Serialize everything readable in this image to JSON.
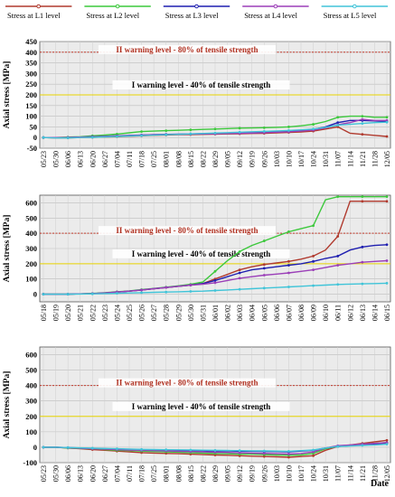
{
  "legend": {
    "position": "top",
    "items": [
      {
        "label": "Stress at L1 level",
        "color": "#b03a2e"
      },
      {
        "label": "Stress at L2 level",
        "color": "#3cc83c"
      },
      {
        "label": "Stress at L3 level",
        "color": "#1f1fb0"
      },
      {
        "label": "Stress at L4 level",
        "color": "#9b3fb8"
      },
      {
        "label": "Stress at L5 level",
        "color": "#40c4d8"
      }
    ]
  },
  "axis_x_label": "Date",
  "chart_data": [
    {
      "type": "line",
      "ylabel": "Axial stress [MPa]",
      "ylim": [
        -50,
        450
      ],
      "yticks": [
        -50,
        0,
        50,
        100,
        150,
        200,
        250,
        300,
        350,
        400,
        450
      ],
      "grid": true,
      "categories": [
        "05/23",
        "05/30",
        "06/06",
        "06/13",
        "06/20",
        "06/27",
        "07/04",
        "07/11",
        "07/18",
        "07/25",
        "08/01",
        "08/08",
        "08/15",
        "08/22",
        "08/29",
        "09/05",
        "09/12",
        "09/19",
        "09/26",
        "10/03",
        "10/10",
        "10/17",
        "10/24",
        "10/31",
        "11/07",
        "11/14",
        "11/21",
        "11/28",
        "12/05"
      ],
      "annotations": [
        {
          "text": "II warning level - 80% of tensile strength",
          "y": 400,
          "color": "#c0392b"
        },
        {
          "text": "I warning level - 40% of tensile strength",
          "y": 200,
          "color": "#e8d400"
        }
      ],
      "series": [
        {
          "name": "Stress at L1 level",
          "values": [
            0,
            -2,
            -2,
            0,
            1,
            2,
            4,
            6,
            8,
            10,
            12,
            13,
            14,
            15,
            16,
            17,
            18,
            19,
            20,
            22,
            24,
            26,
            30,
            40,
            50,
            20,
            15,
            10,
            5
          ]
        },
        {
          "name": "Stress at L2 level",
          "values": [
            0,
            0,
            2,
            4,
            8,
            12,
            16,
            22,
            28,
            30,
            32,
            34,
            36,
            38,
            40,
            42,
            44,
            45,
            46,
            48,
            50,
            55,
            62,
            75,
            95,
            100,
            100,
            95,
            95
          ]
        },
        {
          "name": "Stress at L3 level",
          "values": [
            0,
            0,
            0,
            2,
            4,
            6,
            8,
            10,
            12,
            14,
            15,
            16,
            17,
            18,
            19,
            20,
            21,
            22,
            24,
            26,
            28,
            32,
            38,
            50,
            70,
            80,
            80,
            78,
            75
          ]
        },
        {
          "name": "Stress at L4 level",
          "values": [
            0,
            0,
            0,
            2,
            3,
            5,
            7,
            9,
            11,
            13,
            14,
            15,
            16,
            17,
            18,
            19,
            20,
            21,
            23,
            25,
            27,
            30,
            35,
            45,
            60,
            70,
            85,
            80,
            80
          ]
        },
        {
          "name": "Stress at L5 level",
          "values": [
            0,
            -2,
            -2,
            0,
            1,
            3,
            5,
            7,
            9,
            11,
            13,
            15,
            17,
            19,
            21,
            23,
            25,
            27,
            29,
            31,
            33,
            36,
            40,
            48,
            58,
            62,
            66,
            70,
            72
          ]
        }
      ]
    },
    {
      "type": "line",
      "ylabel": "Axial stress [MPa]",
      "ylim": [
        -50,
        650
      ],
      "yticks": [
        0,
        100,
        200,
        300,
        400,
        500,
        600
      ],
      "grid": true,
      "categories": [
        "05/18",
        "05/19",
        "05/20",
        "05/21",
        "05/22",
        "05/23",
        "05/24",
        "05/25",
        "05/26",
        "05/27",
        "05/28",
        "05/29",
        "05/30",
        "05/31",
        "06/01",
        "06/02",
        "06/03",
        "06/04",
        "06/05",
        "06/06",
        "06/07",
        "06/08",
        "06/09",
        "06/10",
        "06/11",
        "06/12",
        "06/13",
        "06/14",
        "06/15"
      ],
      "annotations": [
        {
          "text": "II warning level - 80% of tensile strength",
          "y": 400,
          "color": "#c0392b"
        },
        {
          "text": "I warning level - 40% of tensile strength",
          "y": 200,
          "color": "#e8d400"
        }
      ],
      "series": [
        {
          "name": "Stress at L1 level",
          "values": [
            0,
            0,
            0,
            2,
            4,
            8,
            14,
            20,
            28,
            36,
            44,
            52,
            60,
            70,
            100,
            130,
            160,
            180,
            195,
            205,
            215,
            230,
            250,
            290,
            380,
            610,
            610,
            610,
            610
          ]
        },
        {
          "name": "Stress at L2 level",
          "values": [
            0,
            0,
            0,
            2,
            5,
            10,
            16,
            22,
            30,
            38,
            46,
            55,
            65,
            80,
            150,
            220,
            280,
            320,
            350,
            380,
            410,
            430,
            450,
            620,
            640,
            640,
            640,
            640,
            640
          ]
        },
        {
          "name": "Stress at L3 level",
          "values": [
            0,
            0,
            0,
            2,
            4,
            8,
            14,
            20,
            28,
            36,
            44,
            52,
            60,
            70,
            90,
            115,
            140,
            160,
            170,
            180,
            190,
            200,
            215,
            235,
            250,
            290,
            310,
            320,
            325
          ]
        },
        {
          "name": "Stress at L4 level",
          "values": [
            0,
            0,
            0,
            2,
            4,
            8,
            14,
            20,
            28,
            36,
            44,
            52,
            60,
            65,
            75,
            90,
            105,
            115,
            125,
            132,
            140,
            150,
            160,
            175,
            190,
            200,
            210,
            215,
            220
          ]
        },
        {
          "name": "Stress at L5 level",
          "values": [
            0,
            0,
            0,
            1,
            2,
            4,
            6,
            8,
            10,
            12,
            14,
            16,
            18,
            20,
            24,
            28,
            32,
            36,
            40,
            44,
            48,
            52,
            56,
            60,
            64,
            66,
            68,
            70,
            72
          ]
        }
      ]
    },
    {
      "type": "line",
      "ylabel": "Axial stress [MPa]",
      "ylim": [
        -100,
        650
      ],
      "yticks": [
        -100,
        0,
        100,
        200,
        300,
        400,
        500,
        600
      ],
      "grid": true,
      "categories": [
        "05/23",
        "05/30",
        "06/06",
        "06/13",
        "06/20",
        "06/27",
        "07/04",
        "07/11",
        "07/18",
        "07/25",
        "08/01",
        "08/08",
        "08/15",
        "08/22",
        "08/29",
        "09/05",
        "09/12",
        "09/19",
        "09/26",
        "10/03",
        "10/10",
        "10/17",
        "10/24",
        "10/31",
        "11/07",
        "11/14",
        "11/21",
        "11/28",
        "12/05"
      ],
      "annotations": [
        {
          "text": "II warning level - 80% of tensile strength",
          "y": 400,
          "color": "#c0392b"
        },
        {
          "text": "I warning level - 40% of tensile strength",
          "y": 200,
          "color": "#e8d400"
        }
      ],
      "series": [
        {
          "name": "Stress at L1 level",
          "values": [
            0,
            0,
            -5,
            -10,
            -15,
            -20,
            -25,
            -30,
            -35,
            -38,
            -40,
            -42,
            -45,
            -48,
            -50,
            -52,
            -55,
            -58,
            -60,
            -62,
            -65,
            -60,
            -55,
            -20,
            5,
            15,
            25,
            35,
            45
          ]
        },
        {
          "name": "Stress at L2 level",
          "values": [
            0,
            0,
            -5,
            -8,
            -10,
            -15,
            -20,
            -22,
            -25,
            -28,
            -30,
            -32,
            -35,
            -38,
            -40,
            -42,
            -45,
            -45,
            -48,
            -50,
            -52,
            -50,
            -40,
            -10,
            5,
            10,
            20,
            25,
            30
          ]
        },
        {
          "name": "Stress at L3 level",
          "values": [
            0,
            0,
            -2,
            -5,
            -8,
            -10,
            -12,
            -14,
            -16,
            -18,
            -20,
            -20,
            -22,
            -22,
            -24,
            -24,
            -26,
            -26,
            -28,
            -28,
            -30,
            -25,
            -20,
            -5,
            5,
            10,
            15,
            20,
            25
          ]
        },
        {
          "name": "Stress at L4 level",
          "values": [
            0,
            0,
            -3,
            -6,
            -9,
            -12,
            -15,
            -18,
            -20,
            -22,
            -24,
            -26,
            -28,
            -30,
            -32,
            -34,
            -36,
            -38,
            -40,
            -42,
            -44,
            -40,
            -30,
            -5,
            10,
            15,
            20,
            25,
            30
          ]
        },
        {
          "name": "Stress at L5 level",
          "values": [
            0,
            0,
            -2,
            -4,
            -6,
            -8,
            -10,
            -12,
            -14,
            -15,
            -16,
            -17,
            -18,
            -19,
            -20,
            -21,
            -22,
            -23,
            -24,
            -25,
            -26,
            -22,
            -18,
            -5,
            5,
            8,
            12,
            15,
            20
          ]
        }
      ]
    }
  ]
}
